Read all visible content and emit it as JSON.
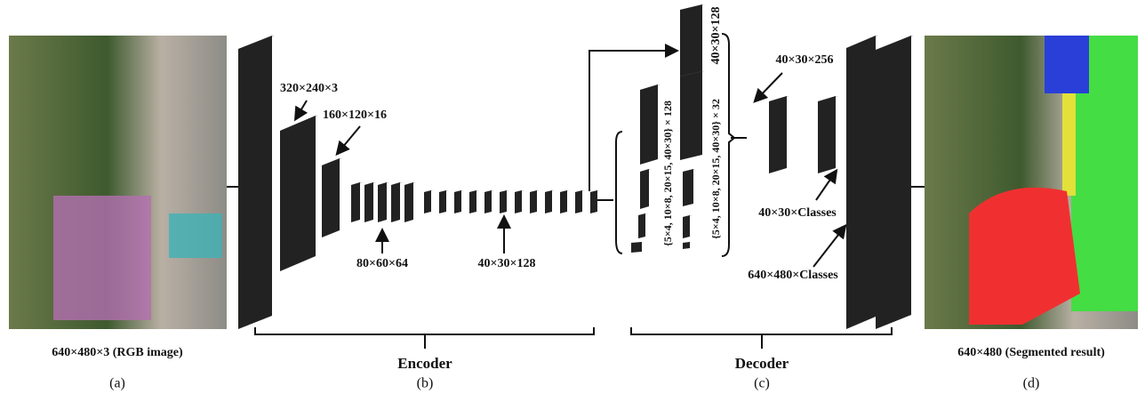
{
  "input": {
    "caption": "640×480×3 (RGB image)",
    "tag": "(a)"
  },
  "encoder": {
    "title": "Encoder",
    "tag": "(b)",
    "labels": [
      "320×240×3",
      "160×120×16",
      "80×60×64",
      "40×30×128"
    ]
  },
  "decoder": {
    "title": "Decoder",
    "tag": "(c)",
    "labels": [
      "40×30×128",
      "{5×4, 10×8, 20×15, 40×30} × 128",
      "{5×4, 10×8, 20×15, 40×30} × 32",
      "40×30×256",
      "40×30×Classes",
      "640×480×Classes"
    ]
  },
  "output": {
    "caption": "640×480 (Segmented result)",
    "tag": "(d)"
  }
}
